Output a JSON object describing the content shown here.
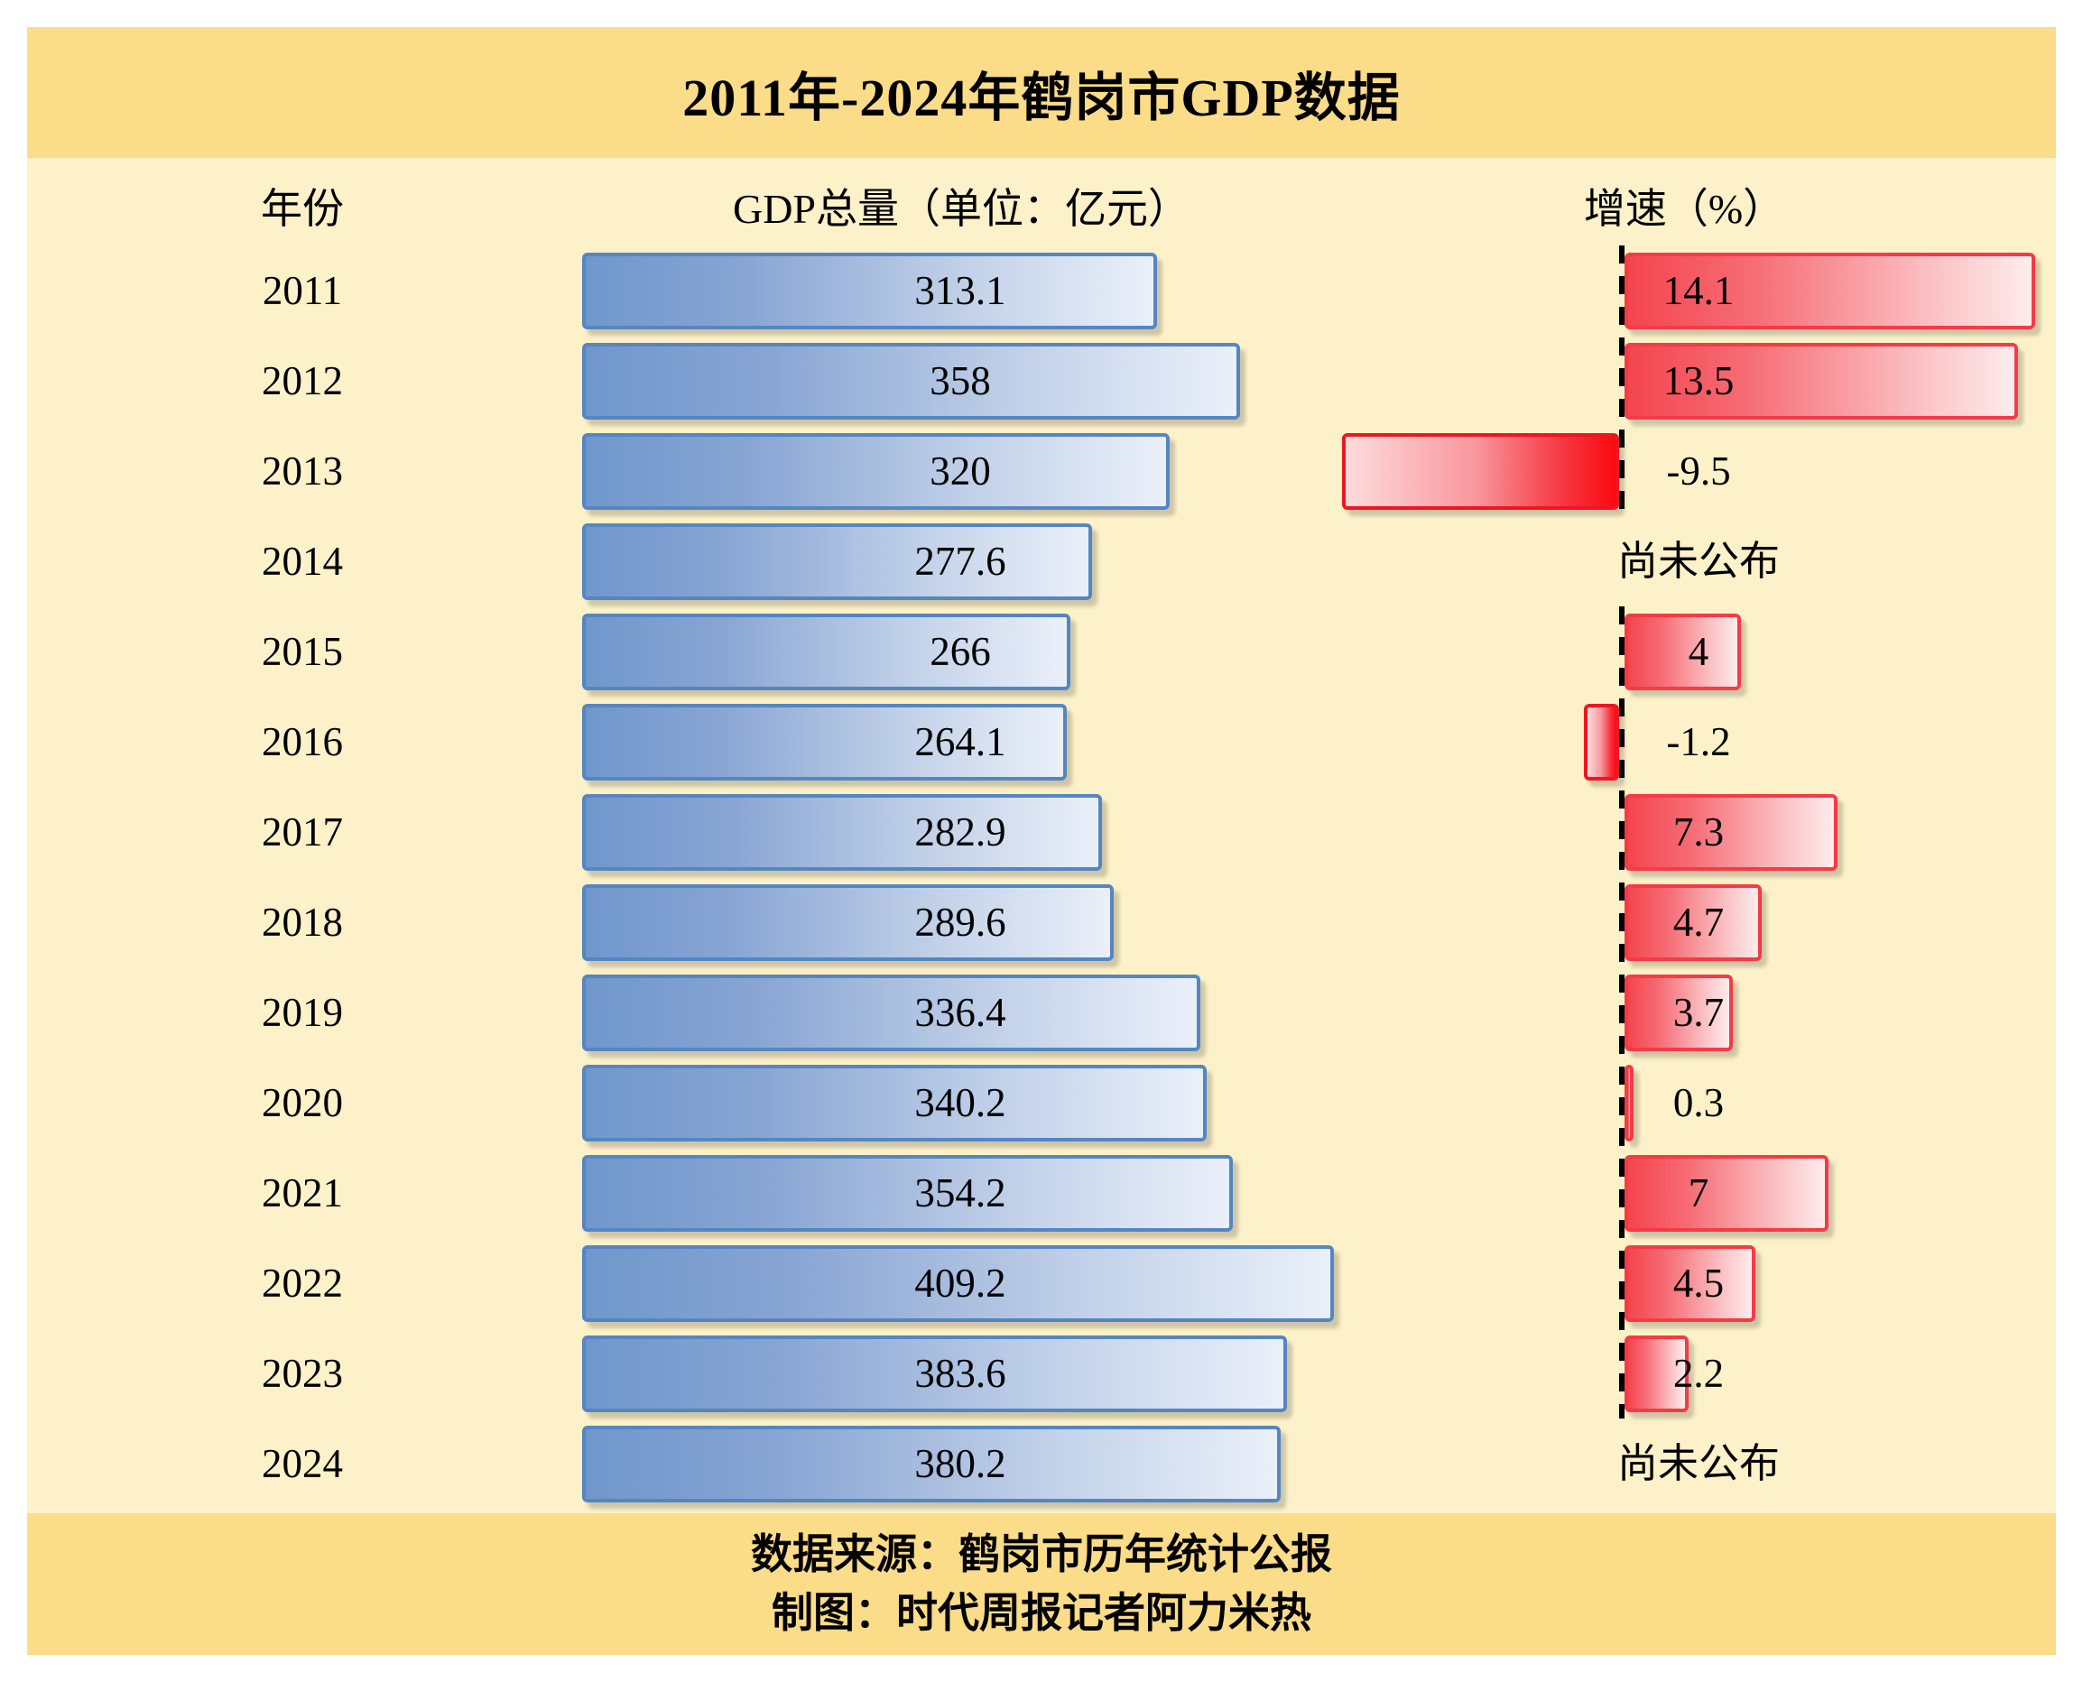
{
  "page_title": "2011年-2024年鹤岗市GDP数据",
  "header": {
    "year": "年份",
    "gdp": "GDP总量（单位：亿元）",
    "growth": "增速（%）"
  },
  "footer": {
    "source": "数据来源：鹤岗市历年统计公报",
    "credit": "制图：时代周报记者阿力米热"
  },
  "colors": {
    "band_gold": "#FBDC88",
    "body_cream": "#FCF1C9",
    "blue_bar_border": "#5586C2",
    "blue_bar_gradient_start": "#7097CC",
    "blue_bar_gradient_end": "#EAF0F9",
    "growth_pos_border": "#F43B46",
    "growth_pos_gradient_start": "#F4454F",
    "growth_pos_gradient_end": "#FDECEC",
    "growth_neg_border": "#EF1621",
    "growth_neg_gradient_start": "#FCDCDC",
    "growth_neg_gradient_end": "#FA0B0E",
    "axis_dashed_line": "#000000",
    "text": "#000000"
  },
  "chart_data": {
    "type": "bar",
    "orientation": "horizontal",
    "title": "2011年-2024年鹤岗市GDP数据",
    "categories": [
      "2011",
      "2012",
      "2013",
      "2014",
      "2015",
      "2016",
      "2017",
      "2018",
      "2019",
      "2020",
      "2021",
      "2022",
      "2023",
      "2024"
    ],
    "series": [
      {
        "name": "GDP总量（单位：亿元）",
        "unit": "亿元",
        "values": [
          313.1,
          358,
          320,
          277.6,
          266,
          264.1,
          282.9,
          289.6,
          336.4,
          340.2,
          354.2,
          409.2,
          383.6,
          380.2
        ]
      },
      {
        "name": "增速（%）",
        "unit": "%",
        "values": [
          14.1,
          13.5,
          -9.5,
          null,
          4,
          -1.2,
          7.3,
          4.7,
          3.7,
          0.3,
          7,
          4.5,
          2.2,
          null
        ]
      }
    ],
    "null_display": "尚未公布",
    "zero_axis": "dashed vertical line in growth column",
    "grid": false,
    "legend_position": "none",
    "value_labels": "shown for every row at fixed column positions"
  }
}
